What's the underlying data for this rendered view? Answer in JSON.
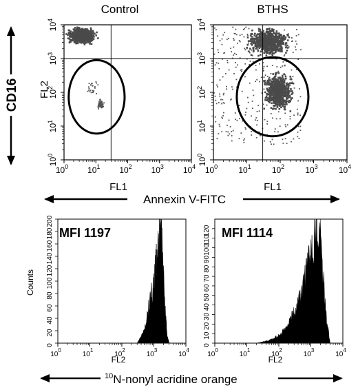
{
  "colors": {
    "ink": "#000000",
    "dots": "#555555",
    "dense": "#4a4a4a",
    "paper": "#ffffff"
  },
  "chart_data": [
    {
      "type": "scatter",
      "title": "Control",
      "xlabel": "FL1",
      "ylabel": "FL2",
      "x_scale": "log",
      "y_scale": "log",
      "xlim": [
        1,
        10000
      ],
      "ylim": [
        1,
        10000
      ],
      "x_ticks": [
        "10",
        "10",
        "10",
        "10",
        "10"
      ],
      "x_tick_exponents": [
        "0",
        "1",
        "2",
        "3",
        "4"
      ],
      "y_ticks": [
        "10",
        "10",
        "10",
        "10",
        "10"
      ],
      "y_tick_exponents": [
        "0",
        "1",
        "2",
        "3",
        "4"
      ],
      "quadrant_gates": {
        "x": 30,
        "y": 1000
      },
      "populations": [
        {
          "x_range": [
            1,
            12
          ],
          "y_range": [
            2500,
            10000
          ],
          "density": "high"
        },
        {
          "x_range": [
            4,
            14
          ],
          "y_range": [
            50,
            350
          ],
          "density": "sparse"
        },
        {
          "x_range": [
            10,
            18
          ],
          "y_range": [
            30,
            70
          ],
          "density": "medium"
        }
      ],
      "gate_ellipse": {
        "center": [
          11,
          110
        ],
        "x_extent": [
          1.4,
          80
        ],
        "y_extent": [
          6,
          900
        ]
      }
    },
    {
      "type": "scatter",
      "title": "BTHS",
      "xlabel": "FL1",
      "ylabel": "",
      "x_scale": "log",
      "y_scale": "log",
      "xlim": [
        1,
        10000
      ],
      "ylim": [
        1,
        10000
      ],
      "x_ticks": [
        "10",
        "10",
        "10",
        "10",
        "10"
      ],
      "x_tick_exponents": [
        "0",
        "1",
        "2",
        "3",
        "4"
      ],
      "y_ticks": [
        "10",
        "10",
        "10",
        "10",
        "10"
      ],
      "y_tick_exponents": [
        "0",
        "1",
        "2",
        "3",
        "4"
      ],
      "quadrant_gates": {
        "x": 30,
        "y": 1000
      },
      "populations": [
        {
          "x_range": [
            8,
            220
          ],
          "y_range": [
            1100,
            9500
          ],
          "density": "high"
        },
        {
          "x_range": [
            25,
            260
          ],
          "y_range": [
            25,
            500
          ],
          "density": "high"
        },
        {
          "x_range": [
            1,
            400
          ],
          "y_range": [
            3,
            9000
          ],
          "density": "scattered"
        }
      ],
      "gate_ellipse": {
        "center": [
          60,
          90
        ],
        "x_extent": [
          5,
          700
        ],
        "y_extent": [
          5,
          1100
        ]
      }
    },
    {
      "type": "area",
      "title": "",
      "annotation": "MFI 1197",
      "xlabel": "FL2",
      "ylabel": "Counts",
      "x_scale": "log",
      "xlim": [
        1,
        10000
      ],
      "ylim": [
        0,
        200
      ],
      "x_ticks": [
        "10",
        "10",
        "10",
        "10",
        "10"
      ],
      "x_tick_exponents": [
        "0",
        "1",
        "2",
        "3",
        "4"
      ],
      "y_ticks": [
        "0",
        "20",
        "40",
        "60",
        "80",
        "100",
        "120",
        "140",
        "160",
        "180",
        "200"
      ],
      "marker_line_x": 1500,
      "x": [
        300,
        500,
        700,
        900,
        1100,
        1300,
        1500,
        1700,
        1900,
        2200,
        2600,
        3000
      ],
      "y": [
        0,
        20,
        60,
        90,
        120,
        150,
        175,
        195,
        140,
        60,
        15,
        0
      ]
    },
    {
      "type": "area",
      "title": "",
      "annotation": "MFI 1114",
      "xlabel": "FL2",
      "ylabel": "",
      "x_scale": "log",
      "xlim": [
        1,
        10000
      ],
      "ylim": [
        0,
        130
      ],
      "y_ticks": [
        "0",
        "10",
        "20",
        "30",
        "40",
        "50",
        "60",
        "70",
        "80",
        "90",
        "100",
        "110",
        "120"
      ],
      "x_ticks": [
        "10",
        "10",
        "10",
        "10",
        "10"
      ],
      "x_tick_exponents": [
        "0",
        "1",
        "2",
        "3",
        "4"
      ],
      "marker_line_x": 1500,
      "x": [
        20,
        50,
        100,
        200,
        400,
        700,
        1000,
        1300,
        1700,
        2200,
        3000,
        4000
      ],
      "y": [
        0,
        3,
        8,
        20,
        45,
        75,
        105,
        118,
        128,
        95,
        30,
        0
      ]
    }
  ],
  "labels": {
    "cd16": "CD16",
    "annexin": "Annexin V-FITC",
    "nao_super": "10",
    "nao_rest": "N-nonyl acridine orange"
  }
}
